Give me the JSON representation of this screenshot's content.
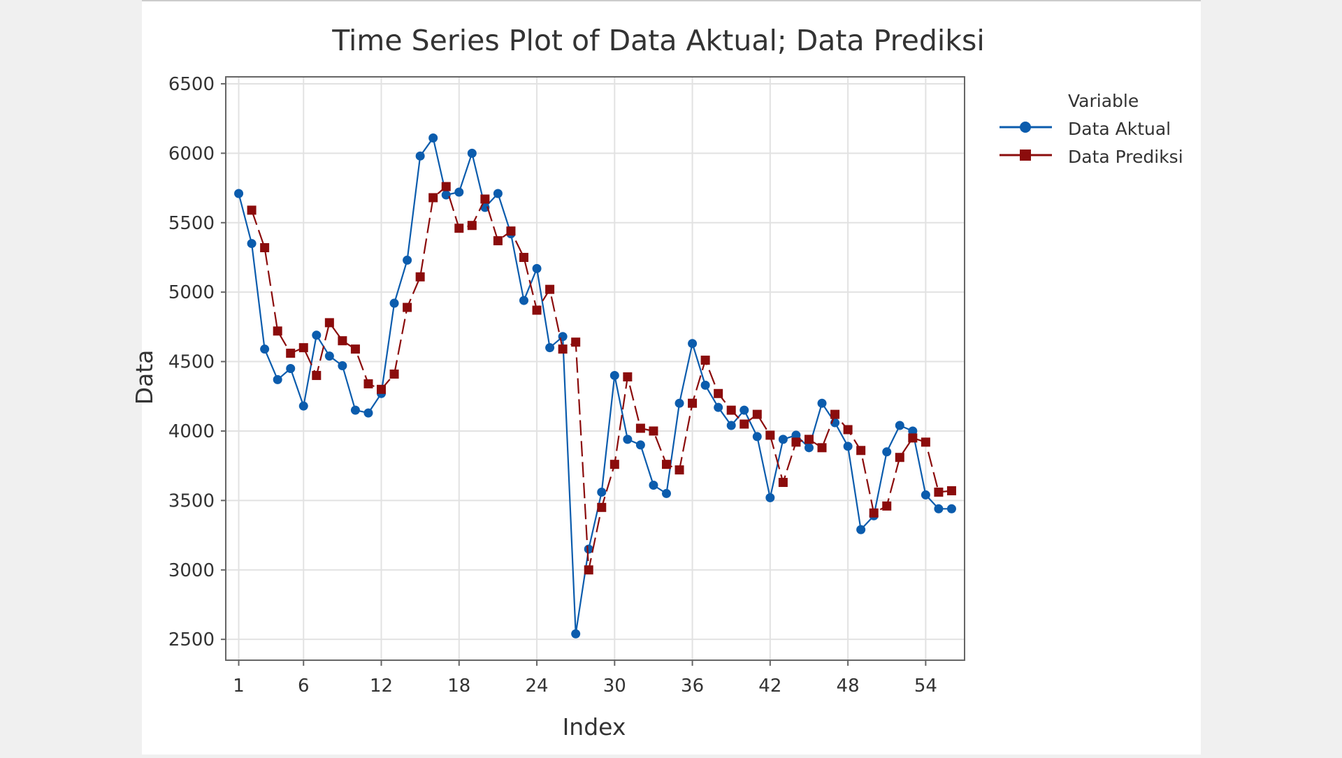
{
  "chart_data": {
    "type": "line",
    "title": "Time Series Plot of Data Aktual; Data Prediksi",
    "xlabel": "Index",
    "ylabel": "Data",
    "xlim": [
      0,
      57
    ],
    "ylim": [
      2350,
      6550
    ],
    "x_ticks": [
      1,
      6,
      12,
      18,
      24,
      30,
      36,
      42,
      48,
      54
    ],
    "y_ticks": [
      2500,
      3000,
      3500,
      4000,
      4500,
      5000,
      5500,
      6000,
      6500
    ],
    "grid": true,
    "legend": {
      "title": "Variable",
      "position": "right"
    },
    "series": [
      {
        "name": "Data Aktual",
        "color": "#0b5cad",
        "marker": "circle",
        "line_style": "solid",
        "x": [
          1,
          2,
          3,
          4,
          5,
          6,
          7,
          8,
          9,
          10,
          11,
          12,
          13,
          14,
          15,
          16,
          17,
          18,
          19,
          20,
          21,
          22,
          23,
          24,
          25,
          26,
          27,
          28,
          29,
          30,
          31,
          32,
          33,
          34,
          35,
          36,
          37,
          38,
          39,
          40,
          41,
          42,
          43,
          44,
          45,
          46,
          47,
          48,
          49,
          50,
          51,
          52,
          53,
          54,
          55,
          56
        ],
        "values": [
          5710,
          5350,
          4590,
          4370,
          4450,
          4180,
          4690,
          4540,
          4470,
          4150,
          4130,
          4270,
          4920,
          5230,
          5980,
          6110,
          5700,
          5720,
          6000,
          5610,
          5710,
          5420,
          4940,
          5170,
          4600,
          4680,
          2540,
          3150,
          3560,
          4400,
          3940,
          3900,
          3610,
          3550,
          4200,
          4630,
          4330,
          4170,
          4040,
          4150,
          3960,
          3520,
          3940,
          3970,
          3880,
          4200,
          4060,
          3890,
          3290,
          3390,
          3850,
          4040,
          4000,
          3540,
          3440,
          3440
        ]
      },
      {
        "name": "Data Prediksi",
        "color": "#8b0c0c",
        "marker": "square",
        "line_style": "dashed",
        "x": [
          2,
          3,
          4,
          5,
          6,
          7,
          8,
          9,
          10,
          11,
          12,
          13,
          14,
          15,
          16,
          17,
          18,
          19,
          20,
          21,
          22,
          23,
          24,
          25,
          26,
          27,
          28,
          29,
          30,
          31,
          32,
          33,
          34,
          35,
          36,
          37,
          38,
          39,
          40,
          41,
          42,
          43,
          44,
          45,
          46,
          47,
          48,
          49,
          50,
          51,
          52,
          53,
          54,
          55,
          56
        ],
        "values": [
          5590,
          5320,
          4720,
          4560,
          4600,
          4400,
          4780,
          4650,
          4590,
          4340,
          4300,
          4410,
          4890,
          5110,
          5680,
          5760,
          5460,
          5480,
          5670,
          5370,
          5440,
          5250,
          4870,
          5020,
          4590,
          4640,
          3000,
          3450,
          3760,
          4390,
          4020,
          4000,
          3760,
          3720,
          4200,
          4510,
          4270,
          4150,
          4050,
          4120,
          3970,
          3630,
          3920,
          3940,
          3880,
          4120,
          4010,
          3860,
          3410,
          3460,
          3810,
          3950,
          3920,
          3560,
          3570
        ]
      }
    ]
  }
}
